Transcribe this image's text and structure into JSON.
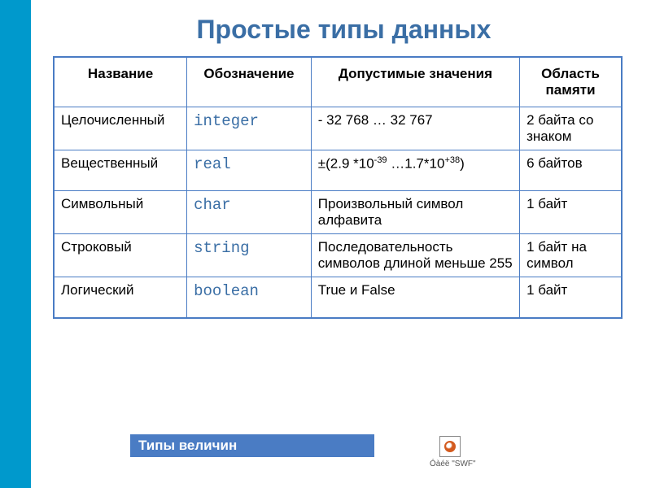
{
  "title": "Простые типы данных",
  "columns": [
    "Название",
    "Обозначение",
    "Допустимые значения",
    "Область памяти"
  ],
  "rows": [
    {
      "name": "Целочисленный",
      "type": "integer",
      "range_html": "- 32 768 … 32 767",
      "memory": "2 байта со знаком"
    },
    {
      "name": "Вещественный",
      "type": "real",
      "range_html": "±(2.9 *10<sup>-39</sup> …1.7*10<sup>+38</sup>)",
      "memory": "6 байтов"
    },
    {
      "name": "Символьный",
      "type": "char",
      "range_html": "Произвольный символ алфавита",
      "memory": "1 байт"
    },
    {
      "name": "Строковый",
      "type": "string",
      "range_html": "Последовательность символов длиной меньше 255",
      "memory": "1 байт на символ"
    },
    {
      "name": "Логический",
      "type": "boolean",
      "range_html": "True и False",
      "memory": "1 байт"
    }
  ],
  "footer": "Типы величин",
  "swf_caption": "Óàéë \"SWF\"",
  "colors": {
    "left_bar": "#0099cc",
    "title": "#3a6ea5",
    "border": "#4a7cc4",
    "mono": "#3a6ea5",
    "footer_bg": "#4a7cc4"
  },
  "col_widths": [
    "150px",
    "140px",
    "235px",
    "115px"
  ]
}
